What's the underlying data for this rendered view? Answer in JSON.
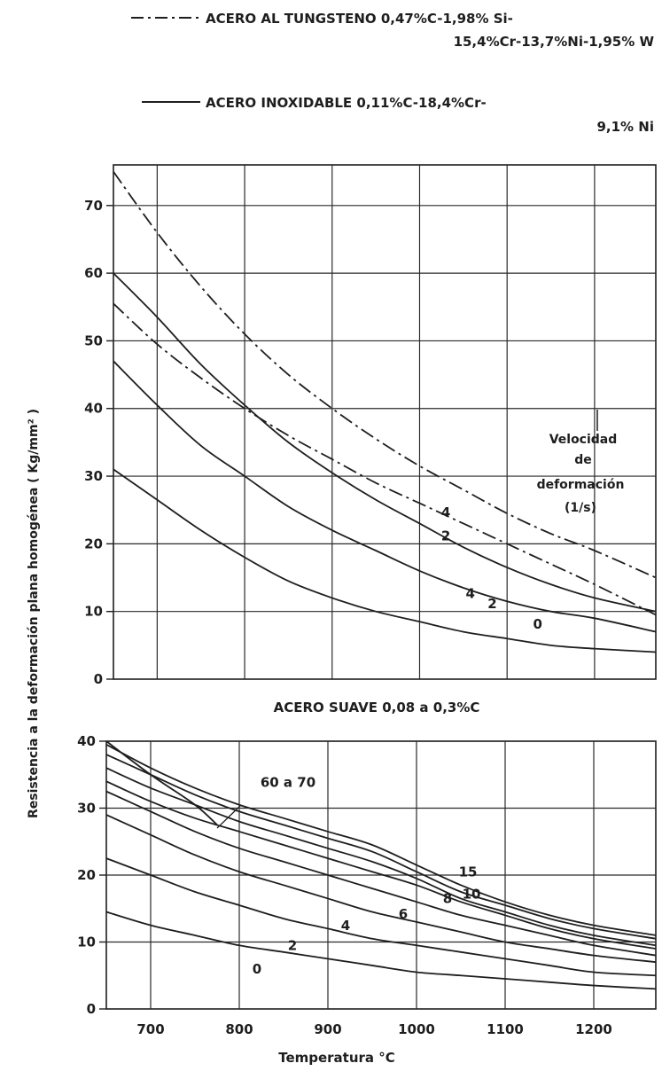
{
  "legend": {
    "tungsten_line1": "ACERO  AL  TUNGSTENO  0,47%C-1,98% Si-",
    "tungsten_line2": "15,4%Cr-13,7%Ni-1,95% W",
    "stainless_line1": "ACERO  INOXIDABLE  0,11%C-18,4%Cr-",
    "stainless_line2": "9,1% Ni",
    "tungsten_style": "dash-dot",
    "stainless_style": "solid"
  },
  "velocidad_note": [
    "Velocidad",
    "de",
    "deformación",
    "(1/s)"
  ],
  "ylabel": "Resistencia  a  la  deformación  plana  homogénea  ( Kg/mm² )",
  "xlabel": "Temperatura  °C",
  "colors": {
    "ink": "#1e1e1e",
    "grid": "#2a2a2a",
    "paper": "#ffffff"
  },
  "chart_data": [
    {
      "type": "line",
      "title": "",
      "xlim": [
        650,
        1270
      ],
      "ylim": [
        0,
        76
      ],
      "x_gridlines": [
        700,
        800,
        900,
        1000,
        1100,
        1200
      ],
      "y_ticks": [
        0,
        10,
        20,
        30,
        40,
        50,
        60,
        70
      ],
      "y_tick_labels": [
        "0",
        "10",
        "20",
        "30",
        "40",
        "50",
        "60",
        "70"
      ],
      "grid": true,
      "series": [
        {
          "name": "4",
          "style": "dash-dot",
          "x": [
            650,
            700,
            750,
            800,
            850,
            900,
            950,
            1000,
            1050,
            1100,
            1150,
            1200,
            1270
          ],
          "y": [
            75,
            66,
            58,
            51,
            45,
            40,
            35.5,
            31.5,
            28,
            24.5,
            21.5,
            19,
            15
          ]
        },
        {
          "name": "2",
          "style": "dash-dot",
          "x": [
            650,
            700,
            750,
            800,
            850,
            900,
            950,
            1000,
            1050,
            1100,
            1150,
            1200,
            1270
          ],
          "y": [
            55.5,
            49.5,
            44.5,
            40,
            36,
            32.5,
            29,
            26,
            23,
            20,
            17,
            14,
            9.5
          ]
        },
        {
          "name": "4",
          "style": "solid",
          "x": [
            650,
            700,
            750,
            800,
            850,
            900,
            950,
            1000,
            1050,
            1100,
            1150,
            1200,
            1270
          ],
          "y": [
            60,
            53.5,
            46.5,
            40.5,
            35,
            30.5,
            26.5,
            23,
            19.5,
            16.5,
            14,
            12,
            10
          ]
        },
        {
          "name": "2",
          "style": "solid",
          "x": [
            650,
            700,
            750,
            800,
            850,
            900,
            950,
            1000,
            1050,
            1100,
            1150,
            1200,
            1270
          ],
          "y": [
            47,
            40.5,
            34.5,
            30,
            25.5,
            22,
            19,
            16,
            13.5,
            11.5,
            10,
            9,
            7
          ]
        },
        {
          "name": "0",
          "style": "solid",
          "x": [
            650,
            700,
            750,
            800,
            850,
            900,
            950,
            1000,
            1050,
            1100,
            1150,
            1200,
            1270
          ],
          "y": [
            31,
            26.5,
            22,
            18,
            14.5,
            12,
            10,
            8.5,
            7,
            6,
            5,
            4.5,
            4
          ]
        }
      ],
      "curve_labels": [
        {
          "text": "4",
          "x": 1030,
          "y": 24
        },
        {
          "text": "2",
          "x": 1030,
          "y": 20.5
        },
        {
          "text": "4",
          "x": 1058,
          "y": 12
        },
        {
          "text": "2",
          "x": 1083,
          "y": 10.5
        },
        {
          "text": "0",
          "x": 1135,
          "y": 7.5
        }
      ]
    },
    {
      "type": "line",
      "title": "ACERO    SUAVE      0,08  a  0,3%C",
      "xlim": [
        650,
        1270
      ],
      "ylim": [
        0,
        40
      ],
      "x_ticks": [
        700,
        800,
        900,
        1000,
        1100,
        1200
      ],
      "x_tick_labels": [
        "700",
        "800",
        "900",
        "1000",
        "1100",
        "1200"
      ],
      "y_ticks": [
        0,
        10,
        20,
        30,
        40
      ],
      "y_tick_labels": [
        "0",
        "10",
        "20",
        "30",
        "40"
      ],
      "grid": true,
      "series": [
        {
          "name": "60 a 70",
          "x": [
            650,
            700,
            750,
            800,
            850,
            900,
            950,
            1000,
            1050,
            1100,
            1150,
            1200,
            1270
          ],
          "y": [
            39.5,
            36,
            33,
            30.5,
            28.5,
            26.5,
            24.5,
            21.5,
            18.5,
            16,
            14,
            12.5,
            11
          ]
        },
        {
          "name": "15",
          "x": [
            650,
            700,
            750,
            800,
            850,
            900,
            950,
            1000,
            1050,
            1100,
            1150,
            1200,
            1270
          ],
          "y": [
            38,
            35,
            32,
            29.5,
            27.5,
            25.5,
            23.5,
            20.5,
            17.5,
            15.5,
            13.5,
            12,
            10.5
          ]
        },
        {
          "name": "10",
          "x": [
            650,
            700,
            750,
            800,
            850,
            900,
            950,
            1000,
            1050,
            1100,
            1150,
            1200,
            1270
          ],
          "y": [
            36,
            33,
            30.5,
            28,
            26,
            24,
            22,
            19.5,
            16.5,
            14.5,
            12.5,
            11,
            9.5
          ]
        },
        {
          "name": "8",
          "x": [
            650,
            700,
            750,
            800,
            850,
            900,
            950,
            1000,
            1050,
            1100,
            1150,
            1200,
            1270
          ],
          "y": [
            34,
            31,
            28.5,
            26.5,
            24.5,
            22.5,
            20.5,
            18.5,
            16,
            14,
            12,
            10.5,
            9
          ]
        },
        {
          "name": "6",
          "x": [
            650,
            700,
            750,
            800,
            850,
            900,
            950,
            1000,
            1050,
            1100,
            1150,
            1200,
            1270
          ],
          "y": [
            32.5,
            29.5,
            26.5,
            24,
            22,
            20,
            18,
            16,
            14,
            12.5,
            11,
            9.5,
            8
          ]
        },
        {
          "name": "4",
          "x": [
            650,
            700,
            750,
            800,
            850,
            900,
            950,
            1000,
            1050,
            1100,
            1150,
            1200,
            1270
          ],
          "y": [
            29,
            26,
            23,
            20.5,
            18.5,
            16.5,
            14.5,
            13,
            11.5,
            10,
            9,
            8,
            7
          ]
        },
        {
          "name": "2",
          "x": [
            650,
            700,
            750,
            800,
            850,
            900,
            950,
            1000,
            1050,
            1100,
            1150,
            1200,
            1270
          ],
          "y": [
            22.5,
            20,
            17.5,
            15.5,
            13.5,
            12,
            10.5,
            9.5,
            8.5,
            7.5,
            6.5,
            5.5,
            5
          ]
        },
        {
          "name": "0",
          "x": [
            650,
            700,
            750,
            800,
            850,
            900,
            950,
            1000,
            1050,
            1100,
            1150,
            1200,
            1270
          ],
          "y": [
            14.5,
            12.5,
            11,
            9.5,
            8.5,
            7.5,
            6.5,
            5.5,
            5,
            4.5,
            4,
            3.5,
            3
          ]
        },
        {
          "name": "60 a 70 (steep)",
          "x": [
            650,
            700,
            750,
            775
          ],
          "y": [
            40,
            35,
            30.5,
            27.5
          ]
        }
      ],
      "curve_labels": [
        {
          "text": "60 a 70",
          "x": 855,
          "y": 33.2
        },
        {
          "text": "15",
          "x": 1058,
          "y": 19.8
        },
        {
          "text": "10",
          "x": 1062,
          "y": 16.5
        },
        {
          "text": "8",
          "x": 1035,
          "y": 15.8
        },
        {
          "text": "6",
          "x": 985,
          "y": 13.5
        },
        {
          "text": "4",
          "x": 920,
          "y": 11.8
        },
        {
          "text": "2",
          "x": 860,
          "y": 8.8
        },
        {
          "text": "0",
          "x": 820,
          "y": 5.3
        }
      ]
    }
  ]
}
